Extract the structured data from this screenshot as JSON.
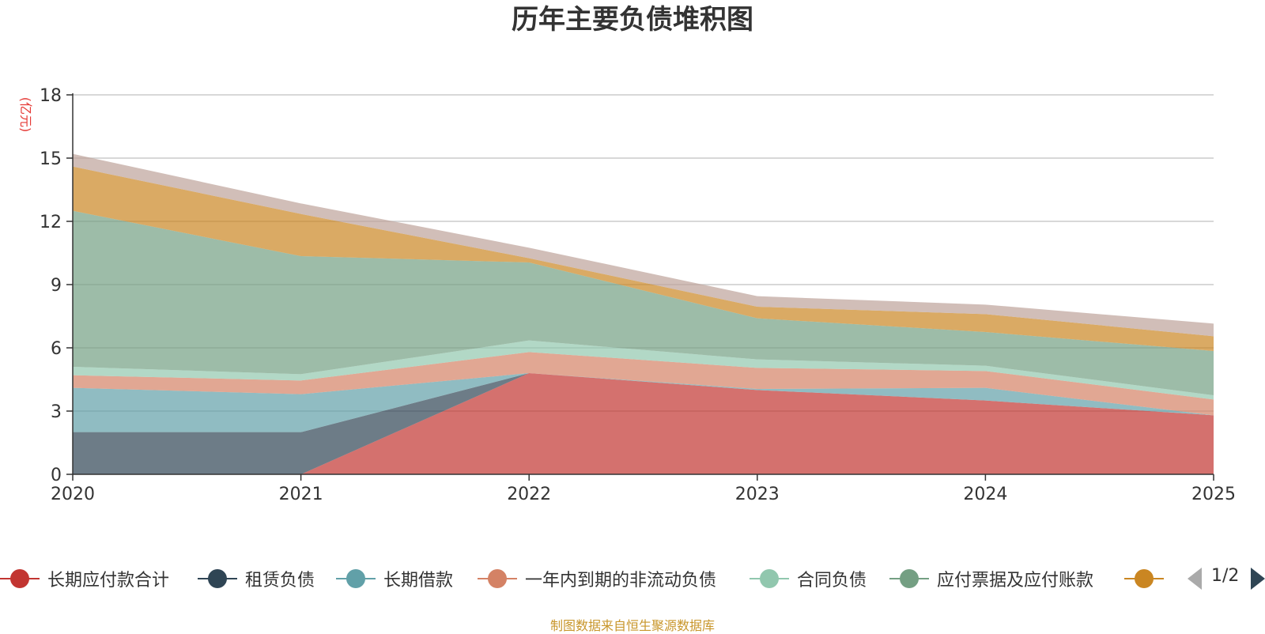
{
  "chart_data": {
    "type": "area",
    "stacked": true,
    "title": "历年主要负债堆积图",
    "ylabel": "(亿元)",
    "xlabel": "",
    "categories": [
      "2020",
      "2021",
      "2022",
      "2023",
      "2024",
      "2025"
    ],
    "ylim": [
      0,
      18
    ],
    "yticks": [
      0,
      3,
      6,
      9,
      12,
      15,
      18
    ],
    "grid": true,
    "series": [
      {
        "name": "长期应付款合计",
        "color": "#c23531",
        "values": [
          0,
          0,
          4.8,
          4.0,
          3.5,
          2.8
        ]
      },
      {
        "name": "租赁负债",
        "color": "#2f4554",
        "values": [
          2.0,
          2.0,
          0,
          0,
          0,
          0
        ]
      },
      {
        "name": "长期借款",
        "color": "#61a0a8",
        "values": [
          2.1,
          1.8,
          0,
          0.05,
          0.6,
          0
        ]
      },
      {
        "name": "一年内到期的非流动负债",
        "color": "#d48265",
        "values": [
          0.6,
          0.65,
          1.0,
          1.0,
          0.8,
          0.75
        ]
      },
      {
        "name": "合同负债",
        "color": "#91c7ae",
        "values": [
          0.4,
          0.3,
          0.55,
          0.4,
          0.25,
          0.2
        ]
      },
      {
        "name": "应付票据及应付账款",
        "color": "#749f83",
        "values": [
          7.4,
          5.6,
          3.7,
          1.95,
          1.6,
          2.1
        ]
      },
      {
        "name": "",
        "color": "#ca8622",
        "values": [
          2.1,
          2.0,
          0.2,
          0.55,
          0.85,
          0.7
        ]
      },
      {
        "name": "",
        "color": "#bda29a",
        "values": [
          0.6,
          0.5,
          0.5,
          0.5,
          0.45,
          0.6
        ]
      }
    ],
    "legend_position": "bottom"
  },
  "legend": {
    "pager": "1/2"
  },
  "footer": {
    "source": "制图数据来自恒生聚源数据库"
  }
}
